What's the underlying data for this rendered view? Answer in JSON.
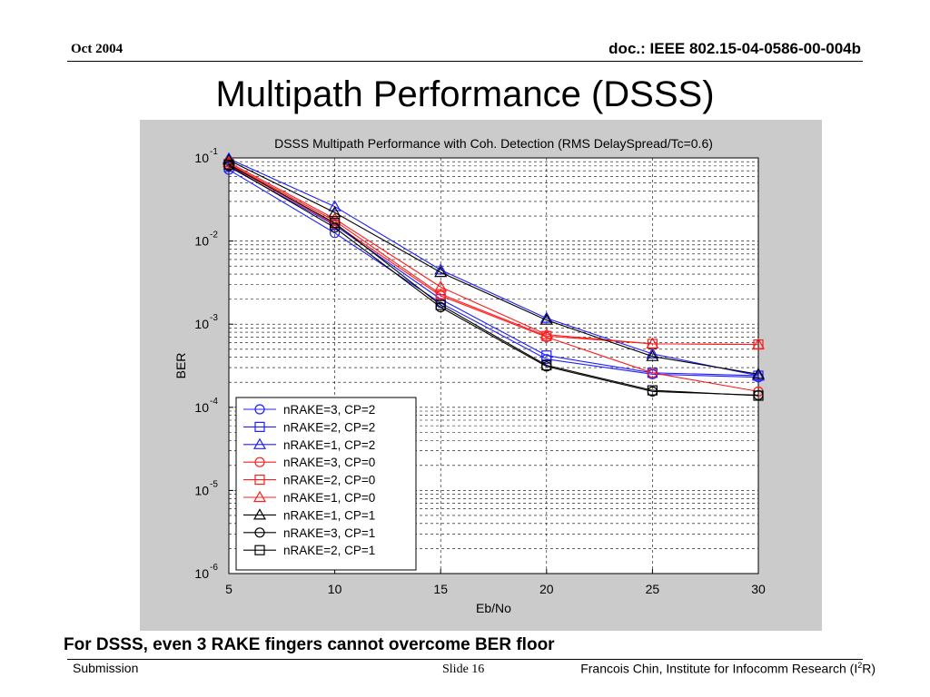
{
  "header": {
    "date": "Oct 2004",
    "doc_id": "doc.: IEEE 802.15-04-0586-00-004b"
  },
  "slide": {
    "title": "Multipath Performance (DSSS)",
    "caption": "For DSSS, even 3 RAKE fingers cannot overcome BER floor"
  },
  "footer": {
    "left": "Submission",
    "slide_label": "Slide 16",
    "right_pre": "Francois Chin, Institute for Infocomm Research (I",
    "right_sup": "2",
    "right_post": "R)"
  },
  "colors": {
    "plot_background": "#cbcbcb",
    "blue": "#1f1fff",
    "red": "#ff1c1c",
    "black": "#000000"
  },
  "chart_data": {
    "type": "line",
    "title": "DSSS Multipath Performance with Coh. Detection (RMS DelaySpread/Tc=0.6)",
    "xlabel": "Eb/No",
    "ylabel": "BER",
    "y_scale": "log",
    "xlim": [
      5,
      30
    ],
    "ylim": [
      1e-06,
      0.1
    ],
    "x_ticks": [
      "5",
      "10",
      "15",
      "20",
      "25",
      "30"
    ],
    "y_ticks": [
      {
        "base": "10",
        "exp": "-1"
      },
      {
        "base": "10",
        "exp": "-2"
      },
      {
        "base": "10",
        "exp": "-3"
      },
      {
        "base": "10",
        "exp": "-4"
      },
      {
        "base": "10",
        "exp": "-5"
      },
      {
        "base": "10",
        "exp": "-6"
      }
    ],
    "grid": true,
    "legend_position": "lower-left",
    "x": [
      5,
      10,
      15,
      20,
      25,
      30
    ],
    "series": [
      {
        "name": "nRAKE=3, CP=2",
        "color": "blue",
        "marker": "circle",
        "values": [
          0.072,
          0.0125,
          0.0018,
          0.00038,
          0.00025,
          0.00023
        ]
      },
      {
        "name": "nRAKE=2, CP=2",
        "color": "blue",
        "marker": "square",
        "values": [
          0.078,
          0.0155,
          0.002,
          0.00042,
          0.00026,
          0.00024
        ]
      },
      {
        "name": "nRAKE=1, CP=2",
        "color": "blue",
        "marker": "triangle",
        "values": [
          0.098,
          0.026,
          0.0045,
          0.00118,
          0.00044,
          0.00024
        ]
      },
      {
        "name": "nRAKE=3, CP=0",
        "color": "red",
        "marker": "circle",
        "values": [
          0.082,
          0.016,
          0.0022,
          0.0007,
          0.00026,
          0.000155
        ]
      },
      {
        "name": "nRAKE=2, CP=0",
        "color": "red",
        "marker": "square",
        "values": [
          0.085,
          0.0175,
          0.0023,
          0.00072,
          0.00058,
          0.00057
        ]
      },
      {
        "name": "nRAKE=1, CP=0",
        "color": "red",
        "marker": "triangle",
        "values": [
          0.088,
          0.0185,
          0.0028,
          0.00075,
          0.00058,
          0.00057
        ]
      },
      {
        "name": "nRAKE=1, CP=1",
        "color": "black",
        "marker": "triangle",
        "values": [
          0.094,
          0.022,
          0.0042,
          0.00112,
          0.00041,
          0.00025
        ]
      },
      {
        "name": "nRAKE=3, CP=1",
        "color": "black",
        "marker": "circle",
        "values": [
          0.08,
          0.0145,
          0.0016,
          0.00031,
          0.000155,
          0.00014
        ]
      },
      {
        "name": "nRAKE=2, CP=1",
        "color": "black",
        "marker": "square",
        "values": [
          0.083,
          0.0165,
          0.0017,
          0.00032,
          0.00016,
          0.000138
        ]
      }
    ]
  }
}
